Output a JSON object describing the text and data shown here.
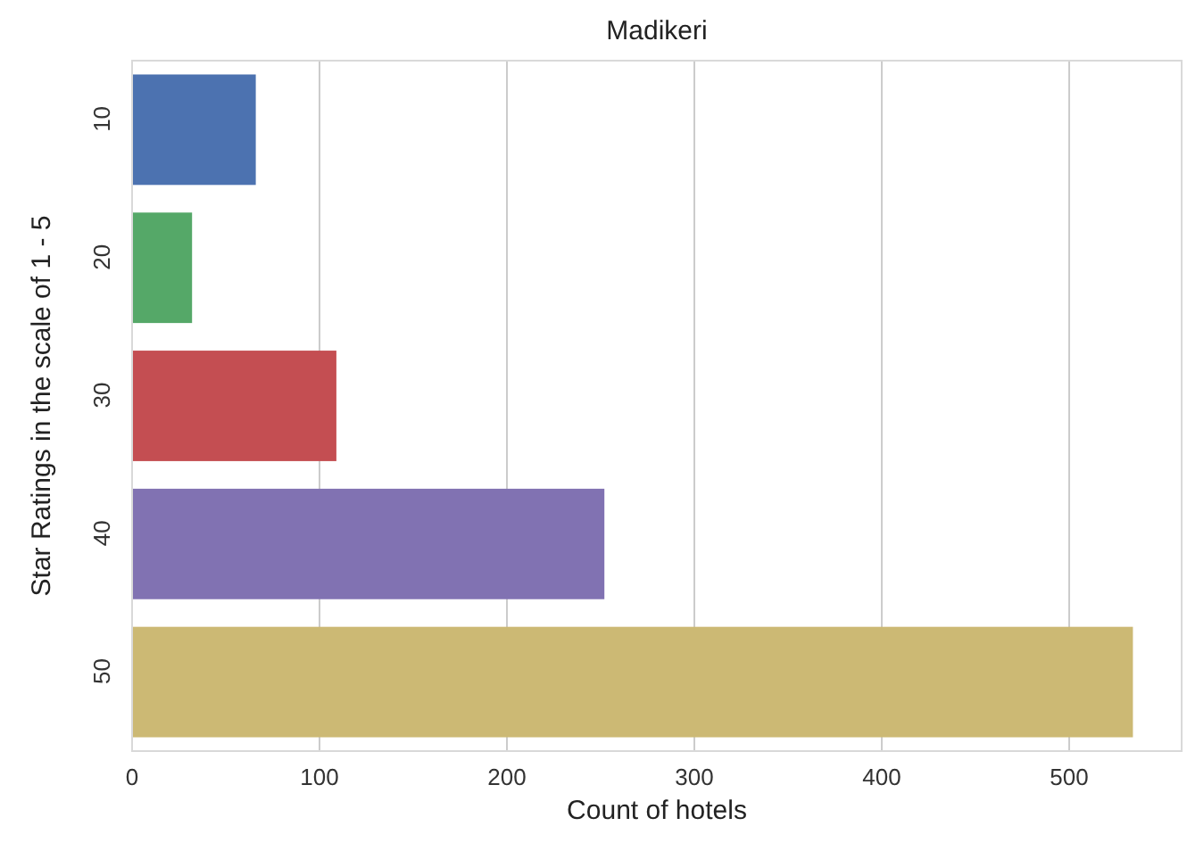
{
  "chart_data": {
    "type": "bar",
    "orientation": "horizontal",
    "title": "Madikeri",
    "xlabel": "Count of hotels",
    "ylabel": "Star Ratings in the scale of 1 - 5",
    "categories": [
      "10",
      "20",
      "30",
      "40",
      "50"
    ],
    "values": [
      66,
      32,
      109,
      252,
      534
    ],
    "colors": [
      "#4c72b0",
      "#55a868",
      "#c44e52",
      "#8172b2",
      "#ccb974"
    ],
    "xlim": [
      0,
      560
    ],
    "xticks": [
      0,
      100,
      200,
      300,
      400,
      500
    ],
    "grid": "x"
  }
}
